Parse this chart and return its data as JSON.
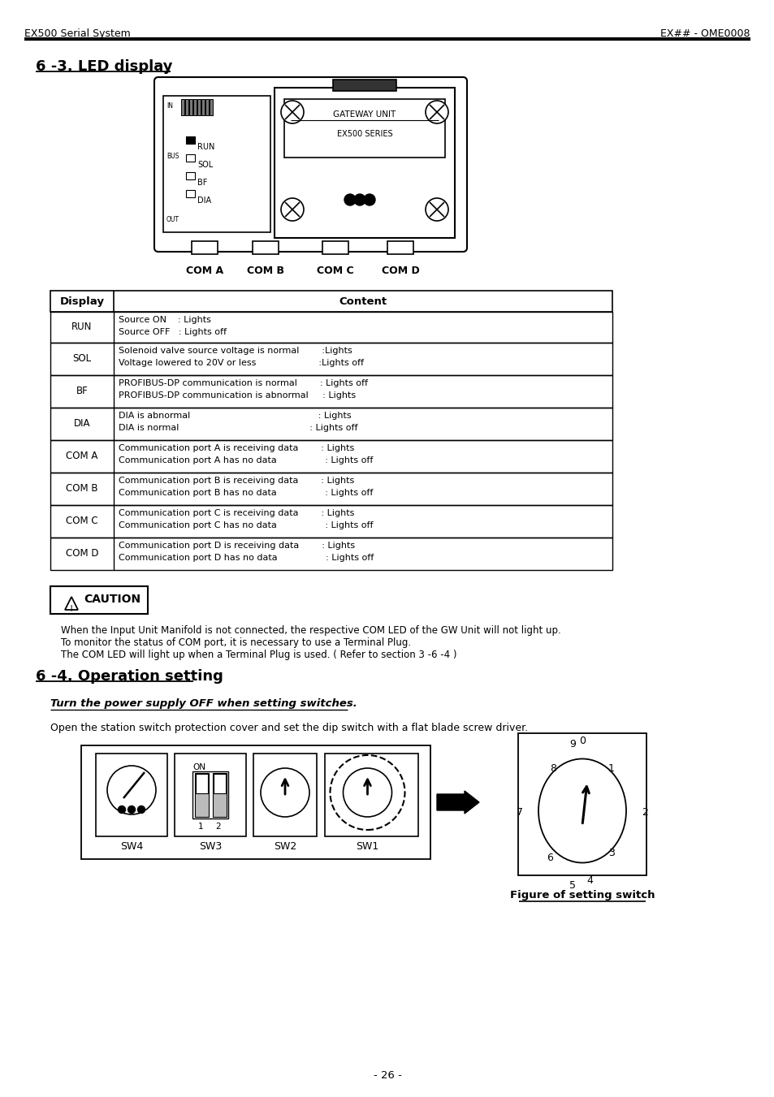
{
  "page_title_left": "EX500 Serial System",
  "page_title_right": "EX## - OME0008",
  "section1_title": "6 -3. LED display",
  "section2_title": "6 -4. Operation setting",
  "section2_subtitle": "Turn the power supply OFF when setting switches.",
  "section2_body": "Open the station switch protection cover and set the dip switch with a flat blade screw driver.",
  "caution_text": "CAUTION",
  "caution_body1": "When the Input Unit Manifold is not connected, the respective COM LED of the GW Unit will not light up.",
  "caution_body2": "To monitor the status of COM port, it is necessary to use a Terminal Plug.",
  "caution_body3": "The COM LED will light up when a Terminal Plug is used. ( Refer to section 3 -6 -4 )",
  "page_number": "- 26 -",
  "figure_caption": "Figure of setting switch",
  "bg_color": "#ffffff",
  "text_color": "#000000"
}
